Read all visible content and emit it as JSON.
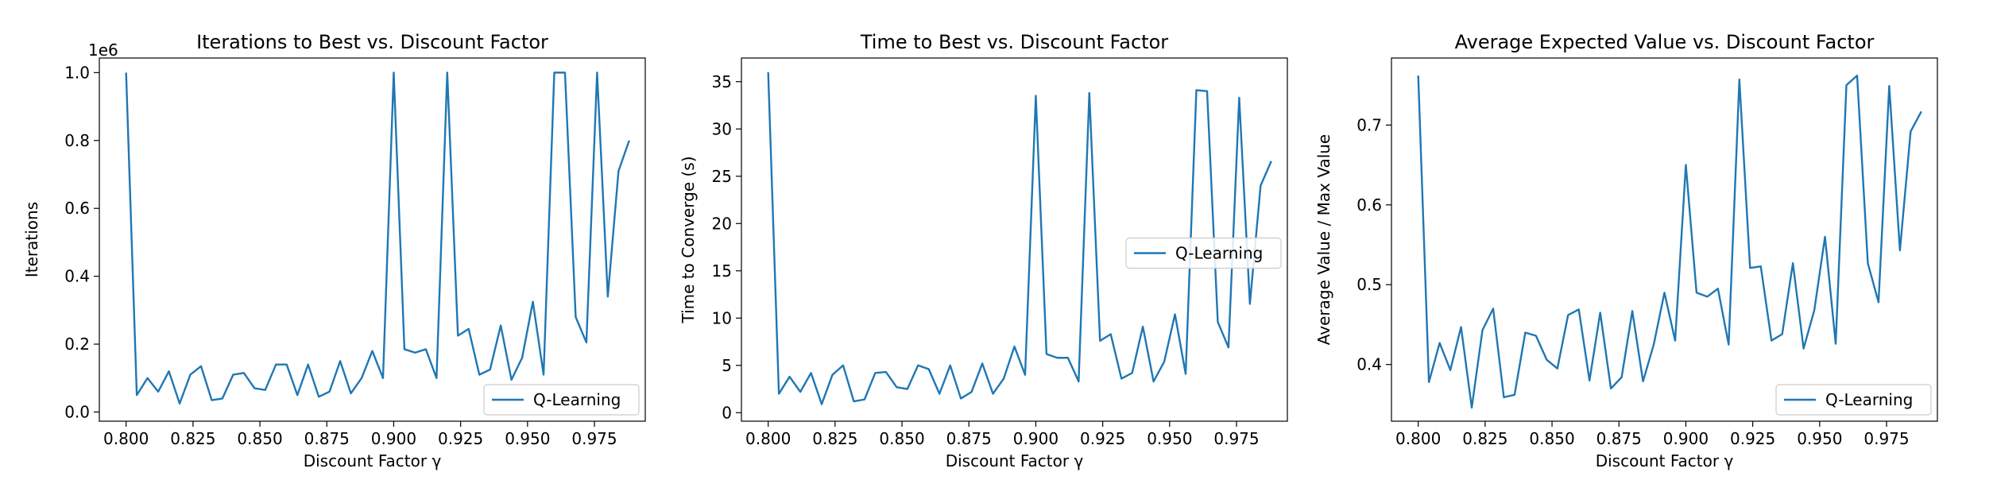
{
  "colors": {
    "series": "#1f77b4",
    "axes": "#000000",
    "background": "#ffffff"
  },
  "chart_data": [
    {
      "type": "line",
      "title": "Iterations to Best vs. Discount Factor",
      "xlabel": "Discount Factor γ",
      "ylabel": "Iterations",
      "y_offset_label": "1e6",
      "xlim": [
        0.79,
        0.994
      ],
      "ylim": [
        -0.027,
        1.043
      ],
      "x_ticks": [
        0.8,
        0.825,
        0.85,
        0.875,
        0.9,
        0.925,
        0.95,
        0.975
      ],
      "x_tick_labels": [
        "0.800",
        "0.825",
        "0.850",
        "0.875",
        "0.900",
        "0.925",
        "0.950",
        "0.975"
      ],
      "y_ticks": [
        0.0,
        0.2,
        0.4,
        0.6,
        0.8,
        1.0
      ],
      "y_tick_labels": [
        "0.0",
        "0.2",
        "0.4",
        "0.6",
        "0.8",
        "1.0"
      ],
      "legend": {
        "entries": [
          "Q-Learning"
        ],
        "placement": "lower-right"
      },
      "grid": false,
      "x": [
        0.8,
        0.804,
        0.808,
        0.812,
        0.816,
        0.82,
        0.824,
        0.828,
        0.832,
        0.836,
        0.84,
        0.844,
        0.848,
        0.852,
        0.856,
        0.86,
        0.864,
        0.868,
        0.872,
        0.876,
        0.88,
        0.884,
        0.888,
        0.892,
        0.896,
        0.9,
        0.904,
        0.908,
        0.912,
        0.916,
        0.92,
        0.924,
        0.928,
        0.932,
        0.936,
        0.94,
        0.944,
        0.948,
        0.952,
        0.956,
        0.96,
        0.964,
        0.968,
        0.972,
        0.976,
        0.98,
        0.984,
        0.988
      ],
      "series": [
        {
          "name": "Q-Learning",
          "values": [
            1.0,
            0.05,
            0.1,
            0.06,
            0.12,
            0.025,
            0.11,
            0.135,
            0.035,
            0.04,
            0.11,
            0.115,
            0.07,
            0.065,
            0.14,
            0.14,
            0.05,
            0.14,
            0.045,
            0.06,
            0.15,
            0.055,
            0.1,
            0.18,
            0.1,
            1.0,
            0.185,
            0.175,
            0.185,
            0.1,
            1.0,
            0.225,
            0.245,
            0.11,
            0.125,
            0.255,
            0.095,
            0.16,
            0.325,
            0.11,
            1.0,
            1.0,
            0.28,
            0.205,
            1.0,
            0.34,
            0.71,
            0.8
          ]
        }
      ]
    },
    {
      "type": "line",
      "title": "Time to Best vs. Discount Factor",
      "xlabel": "Discount Factor γ",
      "ylabel": "Time to Converge (s)",
      "xlim": [
        0.79,
        0.994
      ],
      "ylim": [
        -0.9,
        37.5
      ],
      "x_ticks": [
        0.8,
        0.825,
        0.85,
        0.875,
        0.9,
        0.925,
        0.95,
        0.975
      ],
      "x_tick_labels": [
        "0.800",
        "0.825",
        "0.850",
        "0.875",
        "0.900",
        "0.925",
        "0.950",
        "0.975"
      ],
      "y_ticks": [
        0,
        5,
        10,
        15,
        20,
        25,
        30,
        35
      ],
      "y_tick_labels": [
        "0",
        "5",
        "10",
        "15",
        "20",
        "25",
        "30",
        "35"
      ],
      "legend": {
        "entries": [
          "Q-Learning"
        ],
        "placement": "center-right"
      },
      "grid": false,
      "x": [
        0.8,
        0.804,
        0.808,
        0.812,
        0.816,
        0.82,
        0.824,
        0.828,
        0.832,
        0.836,
        0.84,
        0.844,
        0.848,
        0.852,
        0.856,
        0.86,
        0.864,
        0.868,
        0.872,
        0.876,
        0.88,
        0.884,
        0.888,
        0.892,
        0.896,
        0.9,
        0.904,
        0.908,
        0.912,
        0.916,
        0.92,
        0.924,
        0.928,
        0.932,
        0.936,
        0.94,
        0.944,
        0.948,
        0.952,
        0.956,
        0.96,
        0.964,
        0.968,
        0.972,
        0.976,
        0.98,
        0.984,
        0.988
      ],
      "series": [
        {
          "name": "Q-Learning",
          "values": [
            36.0,
            2.0,
            3.8,
            2.2,
            4.2,
            0.9,
            4.0,
            5.0,
            1.2,
            1.4,
            4.2,
            4.3,
            2.7,
            2.5,
            5.0,
            4.6,
            2.0,
            5.0,
            1.5,
            2.2,
            5.2,
            2.0,
            3.6,
            7.0,
            4.0,
            33.5,
            6.2,
            5.8,
            5.8,
            3.3,
            33.8,
            7.6,
            8.3,
            3.6,
            4.2,
            9.1,
            3.3,
            5.4,
            10.4,
            4.1,
            34.1,
            34.0,
            9.6,
            6.9,
            33.3,
            11.5,
            24.0,
            26.6
          ]
        }
      ]
    },
    {
      "type": "line",
      "title": "Average Expected Value vs. Discount Factor",
      "xlabel": "Discount Factor γ",
      "ylabel": "Average Value / Max Value",
      "xlim": [
        0.79,
        0.994
      ],
      "ylim": [
        0.329,
        0.784
      ],
      "x_ticks": [
        0.8,
        0.825,
        0.85,
        0.875,
        0.9,
        0.925,
        0.95,
        0.975
      ],
      "x_tick_labels": [
        "0.800",
        "0.825",
        "0.850",
        "0.875",
        "0.900",
        "0.925",
        "0.950",
        "0.975"
      ],
      "y_ticks": [
        0.4,
        0.5,
        0.6,
        0.7
      ],
      "y_tick_labels": [
        "0.4",
        "0.5",
        "0.6",
        "0.7"
      ],
      "legend": {
        "entries": [
          "Q-Learning"
        ],
        "placement": "lower-right"
      },
      "grid": false,
      "x": [
        0.8,
        0.804,
        0.808,
        0.812,
        0.816,
        0.82,
        0.824,
        0.828,
        0.832,
        0.836,
        0.84,
        0.844,
        0.848,
        0.852,
        0.856,
        0.86,
        0.864,
        0.868,
        0.872,
        0.876,
        0.88,
        0.884,
        0.888,
        0.892,
        0.896,
        0.9,
        0.904,
        0.908,
        0.912,
        0.916,
        0.92,
        0.924,
        0.928,
        0.932,
        0.936,
        0.94,
        0.944,
        0.948,
        0.952,
        0.956,
        0.96,
        0.964,
        0.968,
        0.972,
        0.976,
        0.98,
        0.984,
        0.988
      ],
      "series": [
        {
          "name": "Q-Learning",
          "values": [
            0.762,
            0.378,
            0.427,
            0.393,
            0.447,
            0.346,
            0.443,
            0.47,
            0.359,
            0.362,
            0.44,
            0.436,
            0.406,
            0.395,
            0.462,
            0.469,
            0.38,
            0.465,
            0.37,
            0.384,
            0.467,
            0.379,
            0.425,
            0.49,
            0.43,
            0.65,
            0.49,
            0.485,
            0.495,
            0.425,
            0.757,
            0.521,
            0.523,
            0.43,
            0.438,
            0.527,
            0.42,
            0.468,
            0.56,
            0.426,
            0.75,
            0.762,
            0.527,
            0.478,
            0.749,
            0.543,
            0.692,
            0.717
          ]
        }
      ]
    }
  ]
}
